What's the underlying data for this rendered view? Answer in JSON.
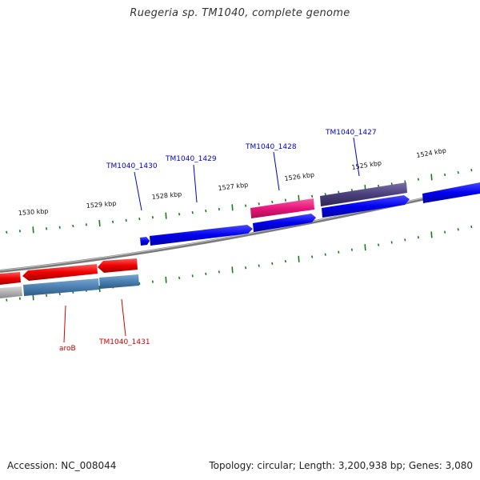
{
  "title": "Ruegeria sp. TM1040, complete genome",
  "footer": {
    "accession_label": "Accession: NC_008044",
    "summary": "Topology: circular; Length: 3,200,938 bp; Genes: 3,080"
  },
  "colors": {
    "backbone": "#808080",
    "tick": "#1a7a1a",
    "gene_label_top": "#0000cc",
    "gene_label_bottom": "#cc0000",
    "cds_blue": "#0000ee",
    "cds_red": "#ee0000",
    "cds_pink": "#e8157a",
    "cds_purple": "#4a3f7a",
    "cds_steel": "#4a7fb0",
    "cds_grey": "#b0b0b0"
  },
  "kbp_labels": [
    "1530 kbp",
    "1529 kbp",
    "1528 kbp",
    "1527 kbp",
    "1526 kbp",
    "1525 kbp",
    "1524 kbp"
  ],
  "gene_labels_top": [
    "TM1040_1430",
    "TM1040_1429",
    "TM1040_1428",
    "TM1040_1427"
  ],
  "gene_labels_bottom": [
    "aroB",
    "TM1040_1431"
  ]
}
